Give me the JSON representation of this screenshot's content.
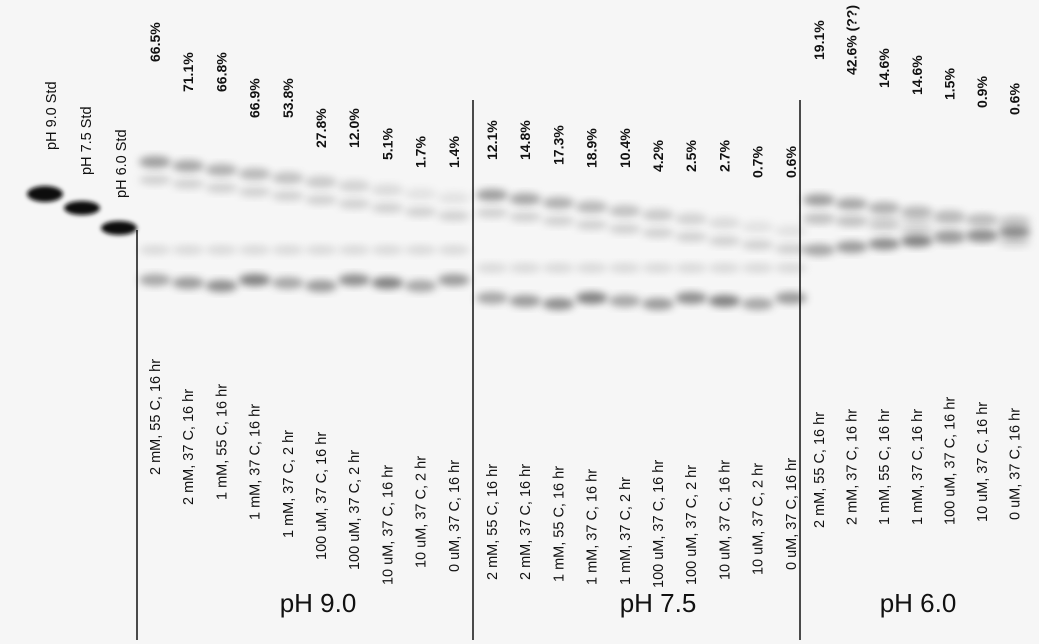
{
  "standards": [
    "pH 9.0 Std",
    "pH 7.5 Std",
    "pH 6.0 Std"
  ],
  "groups": [
    {
      "label": "pH 9.0",
      "lanes": [
        {
          "percent": "66.5%",
          "condition": "2 mM, 55 C, 16 hr"
        },
        {
          "percent": "71.1%",
          "condition": "2 mM, 37 C, 16 hr"
        },
        {
          "percent": "66.8%",
          "condition": "1 mM, 55 C, 16 hr"
        },
        {
          "percent": "66.9%",
          "condition": "1 mM, 37 C, 16 hr"
        },
        {
          "percent": "53.8%",
          "condition": "1 mM, 37 C, 2 hr"
        },
        {
          "percent": "27.8%",
          "condition": "100 uM, 37 C, 16 hr"
        },
        {
          "percent": "12.0%",
          "condition": "100 uM, 37 C, 2 hr"
        },
        {
          "percent": "5.1%",
          "condition": "10 uM, 37 C, 16 hr"
        },
        {
          "percent": "1.7%",
          "condition": "10 uM, 37 C, 2 hr"
        },
        {
          "percent": "1.4%",
          "condition": "0 uM, 37 C, 16 hr"
        }
      ]
    },
    {
      "label": "pH 7.5",
      "lanes": [
        {
          "percent": "12.1%",
          "condition": "2 mM, 55 C, 16 hr"
        },
        {
          "percent": "14.8%",
          "condition": "2 mM, 37 C, 16 hr"
        },
        {
          "percent": "17.3%",
          "condition": "1 mM, 55 C, 16 hr"
        },
        {
          "percent": "18.9%",
          "condition": "1 mM, 37 C, 16 hr"
        },
        {
          "percent": "10.4%",
          "condition": "1 mM, 37 C, 2 hr"
        },
        {
          "percent": "4.2%",
          "condition": "100 uM, 37 C, 16 hr"
        },
        {
          "percent": "2.5%",
          "condition": "100 uM, 37 C, 2 hr"
        },
        {
          "percent": "2.7%",
          "condition": "10 uM, 37 C, 16 hr"
        },
        {
          "percent": "0.7%",
          "condition": "10 uM, 37 C, 2 hr"
        },
        {
          "percent": "0.6%",
          "condition": "0 uM, 37 C, 16 hr"
        }
      ]
    },
    {
      "label": "pH 6.0",
      "lanes": [
        {
          "percent": "19.1%",
          "condition": "2 mM, 55 C, 16 hr"
        },
        {
          "percent": "42.6% (??)",
          "condition": "2 mM, 37 C, 16 hr"
        },
        {
          "percent": "14.6%",
          "condition": "1 mM, 55 C, 16 hr"
        },
        {
          "percent": "14.6%",
          "condition": "1 mM, 37 C, 16 hr"
        },
        {
          "percent": "1.5%",
          "condition": "100 uM, 37 C, 16 hr"
        },
        {
          "percent": "0.9%",
          "condition": "10 uM, 37 C, 16 hr"
        },
        {
          "percent": "0.6%",
          "condition": "0 uM, 37 C, 16 hr"
        }
      ]
    }
  ]
}
